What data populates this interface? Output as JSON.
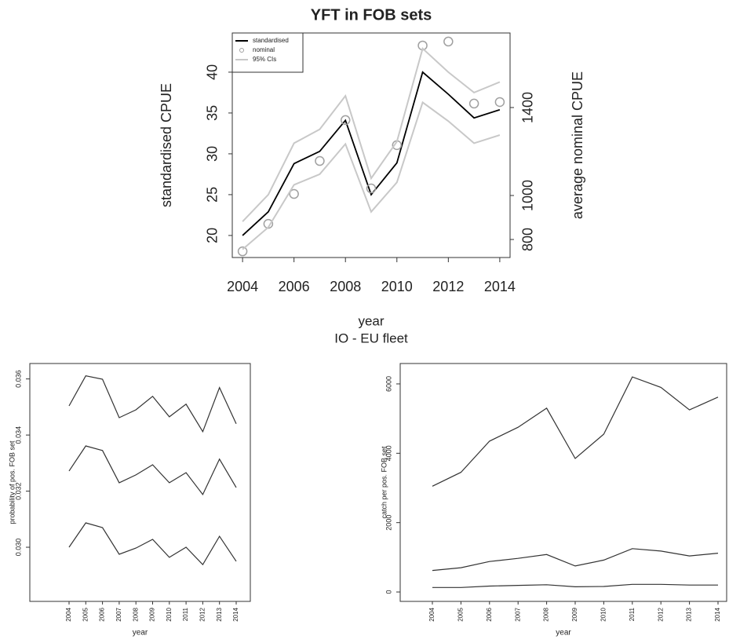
{
  "chart_data": [
    {
      "type": "line",
      "title": "YFT in FOB sets",
      "xlabel": "year",
      "ylabel": "standardised CPUE",
      "y2label": "average nominal CPUE",
      "annotation": "IO - EU fleet",
      "x": [
        2004,
        2005,
        2006,
        2007,
        2008,
        2009,
        2010,
        2011,
        2012,
        2013,
        2014
      ],
      "xlim": [
        2003.6,
        2014.4
      ],
      "xticks": [
        2004,
        2006,
        2008,
        2010,
        2012,
        2014
      ],
      "ylim": [
        17.3,
        44.8
      ],
      "yticks": [
        20,
        25,
        30,
        35,
        40
      ],
      "y2lim": [
        718,
        1739
      ],
      "y2ticks": [
        800,
        1000,
        1400
      ],
      "legend": "topleft",
      "series": [
        {
          "name": "standardised",
          "color": "#000000",
          "values": [
            20,
            22.9,
            28.8,
            30.3,
            34.1,
            25.0,
            28.9,
            40,
            37.3,
            34.4,
            35.4
          ]
        },
        {
          "name": "nominal",
          "color": "#a0a0a0",
          "marker": "circle",
          "axis": "y2",
          "values": [
            746,
            871,
            1007,
            1157,
            1343,
            1032,
            1229,
            1682,
            1700,
            1418,
            1425
          ]
        },
        {
          "name": "95% CIs",
          "color": "#c8c8c8",
          "lower": [
            18.3,
            21,
            26.2,
            27.5,
            31.2,
            22.9,
            26.5,
            36.3,
            34,
            31.3,
            32.3
          ],
          "upper": [
            21.7,
            25,
            31.3,
            33,
            37.1,
            27,
            31.5,
            42.9,
            40,
            37.5,
            38.8
          ]
        }
      ]
    },
    {
      "type": "line",
      "xlabel": "year",
      "ylabel": "probability of pos. FOB set",
      "categories": [
        "2004",
        "2005",
        "2006",
        "2007",
        "2008",
        "2009",
        "2010",
        "2011",
        "2012",
        "2013",
        "2014"
      ],
      "ylim": [
        0.02807,
        0.03655
      ],
      "yticks": [
        {
          "value": 0.03,
          "label": "0.030"
        },
        0.032,
        0.034,
        0.036
      ],
      "series": [
        {
          "color": "#333333",
          "values": [
            0.03504,
            0.03611,
            0.03599,
            0.03462,
            0.0349,
            0.03538,
            0.03465,
            0.0351,
            0.03412,
            0.03569,
            0.0344
          ]
        },
        {
          "color": "#333333",
          "values": [
            0.03272,
            0.03361,
            0.03345,
            0.0323,
            0.03258,
            0.03294,
            0.0323,
            0.03266,
            0.03188,
            0.03314,
            0.03213
          ]
        },
        {
          "color": "#333333",
          "values": [
            0.03,
            0.03087,
            0.0307,
            0.02975,
            0.02997,
            0.03028,
            0.02964,
            0.03,
            0.02938,
            0.03039,
            0.0295
          ]
        }
      ]
    },
    {
      "type": "line",
      "xlabel": "year",
      "ylabel": "catch per pos. FOB set",
      "categories": [
        "2004",
        "2005",
        "2006",
        "2007",
        "2008",
        "2009",
        "2010",
        "2011",
        "2012",
        "2013",
        "2014"
      ],
      "ylim": [
        -271,
        6588
      ],
      "yticks": [
        0,
        2000,
        4000,
        6000
      ],
      "series": [
        {
          "color": "#333333",
          "values": [
            3050,
            3450,
            4350,
            4750,
            5300,
            3850,
            4550,
            6200,
            5900,
            5250,
            5620
          ]
        },
        {
          "color": "#333333",
          "values": [
            620,
            700,
            880,
            970,
            1080,
            750,
            920,
            1250,
            1180,
            1040,
            1120
          ]
        },
        {
          "color": "#333333",
          "values": [
            130,
            130,
            170,
            190,
            210,
            150,
            160,
            220,
            220,
            200,
            200
          ]
        }
      ]
    }
  ]
}
